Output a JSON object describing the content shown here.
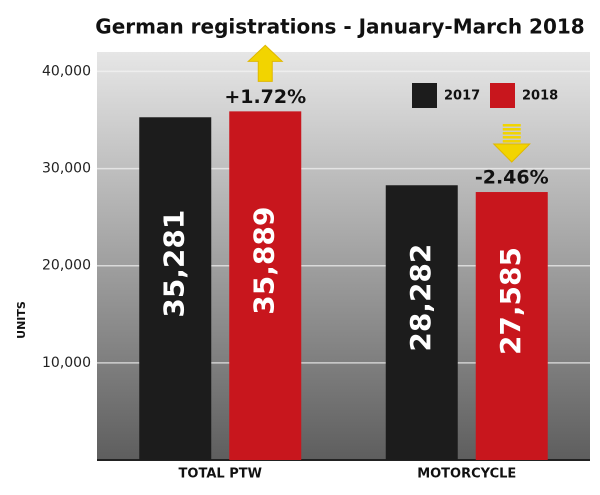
{
  "chart_data": {
    "type": "bar",
    "title": "German registrations - January-March 2018",
    "y_label": "UNITS",
    "categories": [
      "TOTAL PTW",
      "MOTORCYCLE"
    ],
    "series": [
      {
        "name": "2017",
        "color": "#1c1c1c",
        "values": [
          35281,
          28282
        ],
        "value_labels": [
          "35,281",
          "28,282"
        ]
      },
      {
        "name": "2018",
        "color": "#c8161d",
        "values": [
          35889,
          27585
        ],
        "value_labels": [
          "35,889",
          "27,585"
        ]
      }
    ],
    "annotations": [
      "+1.72%",
      "-2.46%"
    ],
    "ylim": [
      0,
      42000
    ],
    "yticks": [
      {
        "value": 10000,
        "label": "10,000"
      },
      {
        "value": 20000,
        "label": "20,000"
      },
      {
        "value": 30000,
        "label": "30,000"
      },
      {
        "value": 40000,
        "label": "40,000"
      }
    ],
    "grid": true,
    "legend": "top-right"
  }
}
